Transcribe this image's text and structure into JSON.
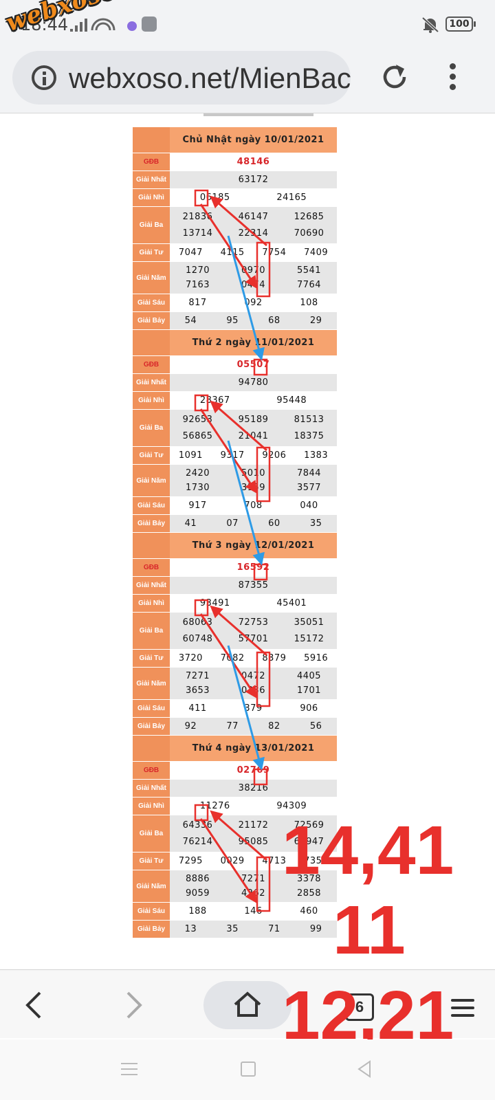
{
  "status_bar": {
    "time": "18:44",
    "battery": "100"
  },
  "watermark": "webxoso.net",
  "browser": {
    "url": "webxoso.net/MienBac"
  },
  "labels": {
    "gdb": "GĐB",
    "nhat": "Giải Nhất",
    "nhi": "Giải Nhì",
    "ba": "Giải Ba",
    "tu": "Giải Tư",
    "nam": "Giải Năm",
    "sau": "Giải Sáu",
    "bay": "Giải Bảy"
  },
  "draws": [
    {
      "title": "Chủ Nhật ngày 10/01/2021",
      "gdb": "48146",
      "nhat": "63172",
      "nhi": [
        "06185",
        "24165"
      ],
      "ba": [
        "21836",
        "46147",
        "12685",
        "13714",
        "22314",
        "70690"
      ],
      "tu": [
        "7047",
        "4115",
        "7754",
        "7409"
      ],
      "nam": [
        "1270",
        "0970",
        "5541",
        "7163",
        "0474",
        "7764"
      ],
      "sau": [
        "817",
        "092",
        "108"
      ],
      "bay": [
        "54",
        "95",
        "68",
        "29"
      ]
    },
    {
      "title": "Thứ 2 ngày 11/01/2021",
      "gdb": "05507",
      "nhat": "94780",
      "nhi": [
        "28367",
        "95448"
      ],
      "ba": [
        "92653",
        "95189",
        "81513",
        "56865",
        "21041",
        "18375"
      ],
      "tu": [
        "1091",
        "9317",
        "9206",
        "1383"
      ],
      "nam": [
        "2420",
        "5010",
        "7844",
        "1730",
        "3159",
        "3577"
      ],
      "sau": [
        "917",
        "708",
        "040"
      ],
      "bay": [
        "41",
        "07",
        "60",
        "35"
      ]
    },
    {
      "title": "Thứ 3 ngày 12/01/2021",
      "gdb": "16592",
      "nhat": "87355",
      "nhi": [
        "93491",
        "45401"
      ],
      "ba": [
        "68063",
        "72753",
        "35051",
        "60748",
        "57701",
        "15172"
      ],
      "tu": [
        "3720",
        "7082",
        "8379",
        "5916"
      ],
      "nam": [
        "7271",
        "0472",
        "4405",
        "3653",
        "0336",
        "1701"
      ],
      "sau": [
        "411",
        "379",
        "906"
      ],
      "bay": [
        "92",
        "77",
        "82",
        "56"
      ]
    },
    {
      "title": "Thứ 4 ngày 13/01/2021",
      "gdb": "02769",
      "nhat": "38216",
      "nhi": [
        "11276",
        "94309"
      ],
      "ba": [
        "64336",
        "21172",
        "72569",
        "76214",
        "95085",
        "61947"
      ],
      "tu": [
        "7295",
        "0029",
        "4713",
        "7354"
      ],
      "nam": [
        "8886",
        "7271",
        "3378",
        "9059",
        "4262",
        "2858"
      ],
      "sau": [
        "188",
        "146",
        "460"
      ],
      "bay": [
        "13",
        "35",
        "71",
        "99"
      ]
    }
  ],
  "annotations": {
    "line1": "14,41",
    "line2": "11",
    "line3": "12,21"
  },
  "nav": {
    "tabs_count": "6"
  },
  "colors": {
    "header_orange": "#f6a36f",
    "label_orange": "#f0915a",
    "gdb_red": "#d8262a",
    "arrow_red": "#e8302c",
    "arrow_blue": "#2e9be6"
  }
}
